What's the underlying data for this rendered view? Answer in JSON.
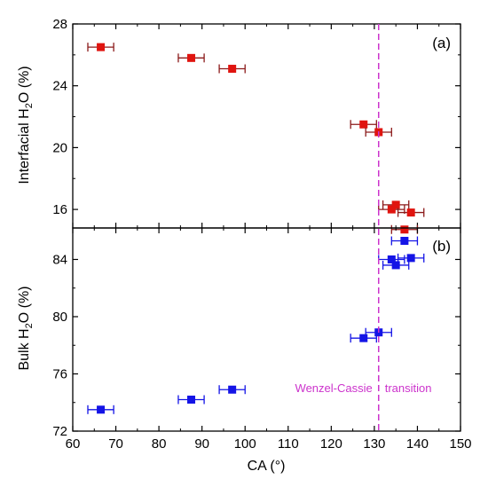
{
  "chart_data": [
    {
      "panel": "(a)",
      "type": "scatter",
      "ylabel": "Interfacial H2O (%)",
      "ylabel_main": "Interfacial H",
      "ylabel_sub": "2",
      "ylabel_tail": "O (%)",
      "ylim": [
        14.8,
        28
      ],
      "yticks": [
        16,
        20,
        24,
        28
      ],
      "ytick_labels": [
        "16",
        "20",
        "24",
        "28"
      ],
      "marker": "square",
      "color": "#e0140f",
      "errorbar_color": "#8b1a1a",
      "points": [
        {
          "x": 66.5,
          "y": 26.5,
          "xerr": 3
        },
        {
          "x": 87.5,
          "y": 25.8,
          "xerr": 3
        },
        {
          "x": 97,
          "y": 25.1,
          "xerr": 3
        },
        {
          "x": 127.5,
          "y": 21.5,
          "xerr": 3
        },
        {
          "x": 131,
          "y": 21.0,
          "xerr": 3
        },
        {
          "x": 134,
          "y": 16.0,
          "xerr": 3
        },
        {
          "x": 135,
          "y": 16.3,
          "xerr": 3
        },
        {
          "x": 138.5,
          "y": 15.8,
          "xerr": 3
        },
        {
          "x": 137,
          "y": 14.7,
          "xerr": 3
        }
      ]
    },
    {
      "panel": "(b)",
      "type": "scatter",
      "ylabel": "Bulk H2O (%)",
      "ylabel_main": "Bulk H",
      "ylabel_sub": "2",
      "ylabel_tail": "O (%)",
      "ylim": [
        72,
        86.2
      ],
      "yticks": [
        72,
        76,
        80,
        84
      ],
      "ytick_labels": [
        "72",
        "76",
        "80",
        "84"
      ],
      "marker": "square",
      "color": "#1414e6",
      "errorbar_color": "#1414e6",
      "points": [
        {
          "x": 66.5,
          "y": 73.5,
          "xerr": 3
        },
        {
          "x": 87.5,
          "y": 74.2,
          "xerr": 3
        },
        {
          "x": 97,
          "y": 74.9,
          "xerr": 3
        },
        {
          "x": 127.5,
          "y": 78.5,
          "xerr": 3
        },
        {
          "x": 131,
          "y": 78.9,
          "xerr": 3
        },
        {
          "x": 134,
          "y": 84.0,
          "xerr": 3
        },
        {
          "x": 135,
          "y": 83.6,
          "xerr": 3
        },
        {
          "x": 138.5,
          "y": 84.1,
          "xerr": 3
        },
        {
          "x": 137,
          "y": 85.3,
          "xerr": 3
        }
      ]
    }
  ],
  "xaxis": {
    "label": "CA (°)",
    "xlim": [
      60,
      150
    ],
    "ticks": [
      60,
      70,
      80,
      90,
      100,
      110,
      120,
      130,
      140,
      150
    ],
    "tick_labels": [
      "60",
      "70",
      "80",
      "90",
      "100",
      "110",
      "120",
      "130",
      "140",
      "150"
    ]
  },
  "transition": {
    "x": 131,
    "label_left": "Wenzel-Cassie",
    "label_right": "transition",
    "color": "#cc33cc"
  }
}
